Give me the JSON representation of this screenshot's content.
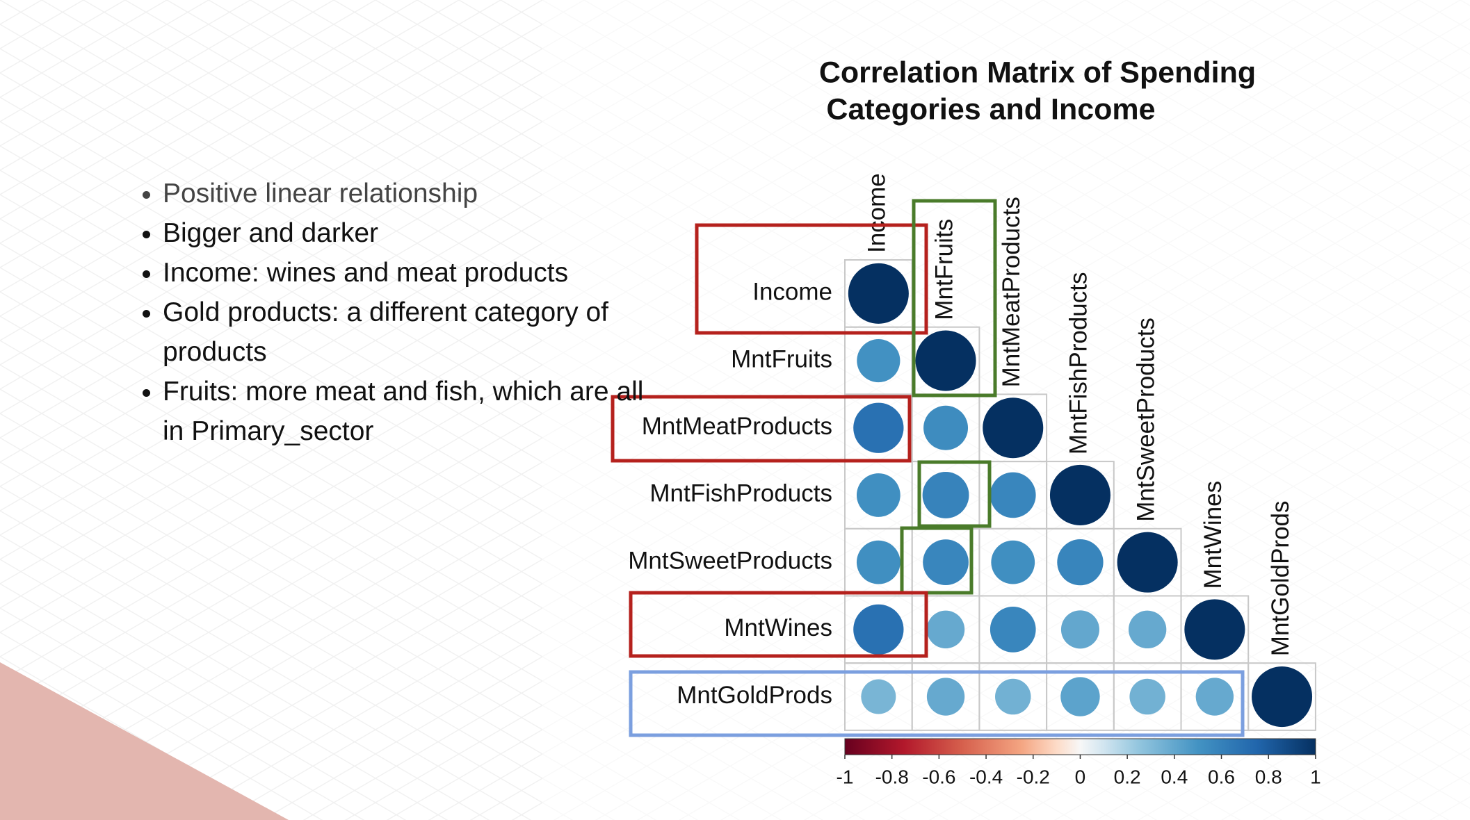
{
  "bullets": [
    "Positive linear relationship",
    "Bigger and darker",
    "Income: wines and meat products",
    "Gold products: a different category of products",
    "Fruits: more meat and fish, which are all in Primary_sector"
  ],
  "chart_data": {
    "type": "correlation",
    "title": [
      "Correlation Matrix of Spending",
      "Categories and Income"
    ],
    "variables": [
      "Income",
      "MntFruits",
      "MntMeatProducts",
      "MntFishProducts",
      "MntSweetProducts",
      "MntWines",
      "MntGoldProds"
    ],
    "matrix": [
      [
        1
      ],
      [
        0.51,
        1
      ],
      [
        0.69,
        0.54,
        1
      ],
      [
        0.52,
        0.59,
        0.57,
        1
      ],
      [
        0.52,
        0.57,
        0.52,
        0.58,
        1
      ],
      [
        0.69,
        0.39,
        0.57,
        0.4,
        0.39,
        1
      ],
      [
        0.33,
        0.39,
        0.35,
        0.42,
        0.35,
        0.39,
        1
      ]
    ],
    "colorscale": [
      [
        -1,
        "#67001F"
      ],
      [
        -0.75,
        "#B2182B"
      ],
      [
        -0.5,
        "#D6604D"
      ],
      [
        -0.25,
        "#F4A582"
      ],
      [
        -0.1,
        "#FDDBC7"
      ],
      [
        0,
        "#F7F7F7"
      ],
      [
        0.1,
        "#D1E5F0"
      ],
      [
        0.25,
        "#92C5DE"
      ],
      [
        0.5,
        "#4393C3"
      ],
      [
        0.75,
        "#2166AC"
      ],
      [
        1,
        "#053061"
      ]
    ],
    "clim": [
      -1,
      1
    ],
    "cticks": [
      -1,
      -0.8,
      -0.6,
      -0.4,
      -0.2,
      0,
      0.2,
      0.4,
      0.6,
      0.8,
      1
    ]
  }
}
